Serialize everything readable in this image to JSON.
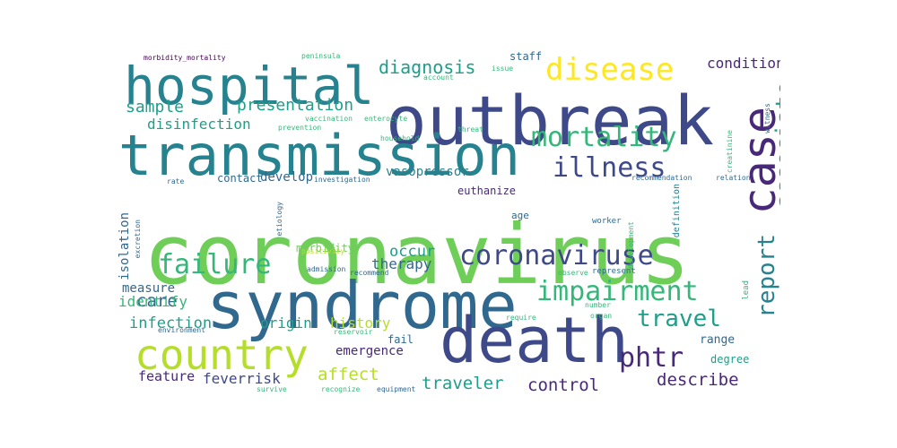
{
  "colors": {
    "yellow": "#fde725",
    "lime": "#b5de2b",
    "green": "#6ece58",
    "mint": "#35b779",
    "teal": "#1f9e89",
    "cyan": "#26828e",
    "steel": "#31688e",
    "blue": "#3e4989",
    "indigo": "#482878",
    "purple": "#440154"
  },
  "words": [
    {
      "id": "coronavirus",
      "text": "coronavirus",
      "c": "green"
    },
    {
      "id": "syndrome",
      "text": "syndrome",
      "c": "steel"
    },
    {
      "id": "outbreak",
      "text": "outbreak",
      "c": "blue"
    },
    {
      "id": "transmission",
      "text": "transmission",
      "c": "cyan"
    },
    {
      "id": "hospital",
      "text": "hospital",
      "c": "cyan"
    },
    {
      "id": "death",
      "text": "death",
      "c": "blue"
    },
    {
      "id": "case",
      "text": "case",
      "c": "indigo"
    },
    {
      "id": "country",
      "text": "country",
      "c": "lime"
    },
    {
      "id": "disease",
      "text": "disease",
      "c": "yellow"
    },
    {
      "id": "mortality",
      "text": "mortality",
      "c": "mint"
    },
    {
      "id": "associate",
      "text": "associate",
      "c": "teal"
    },
    {
      "id": "illness",
      "text": "illness",
      "c": "blue"
    },
    {
      "id": "coronaviruse",
      "text": "coronaviruse",
      "c": "blue"
    },
    {
      "id": "failure",
      "text": "failure",
      "c": "mint"
    },
    {
      "id": "impairment",
      "text": "impairment",
      "c": "mint"
    },
    {
      "id": "report",
      "text": "report",
      "c": "cyan"
    },
    {
      "id": "travel",
      "text": "travel",
      "c": "teal"
    },
    {
      "id": "phtr",
      "text": "phtr",
      "c": "indigo"
    },
    {
      "id": "diagnosis",
      "text": "diagnosis",
      "c": "teal"
    },
    {
      "id": "presentation",
      "text": "presentation",
      "c": "teal"
    },
    {
      "id": "sample",
      "text": "sample",
      "c": "teal"
    },
    {
      "id": "disinfection",
      "text": "disinfection",
      "c": "teal"
    },
    {
      "id": "condition",
      "text": "condition",
      "c": "indigo"
    },
    {
      "id": "occur",
      "text": "occur",
      "c": "teal"
    },
    {
      "id": "therapy",
      "text": "therapy",
      "c": "steel"
    },
    {
      "id": "care",
      "text": "care",
      "c": "steel"
    },
    {
      "id": "measure",
      "text": "measure",
      "c": "steel"
    },
    {
      "id": "identify",
      "text": "identify",
      "c": "mint"
    },
    {
      "id": "infection",
      "text": "infection",
      "c": "teal"
    },
    {
      "id": "origin",
      "text": "origin",
      "c": "teal"
    },
    {
      "id": "history",
      "text": "history",
      "c": "lime"
    },
    {
      "id": "emergence",
      "text": "emergence",
      "c": "indigo"
    },
    {
      "id": "feverrisk",
      "text": "feverrisk",
      "c": "blue"
    },
    {
      "id": "affect",
      "text": "affect",
      "c": "lime"
    },
    {
      "id": "feature",
      "text": "feature",
      "c": "indigo"
    },
    {
      "id": "traveler",
      "text": "traveler",
      "c": "teal"
    },
    {
      "id": "control",
      "text": "control",
      "c": "indigo"
    },
    {
      "id": "describe",
      "text": "describe",
      "c": "indigo"
    },
    {
      "id": "range",
      "text": "range",
      "c": "steel"
    },
    {
      "id": "degree",
      "text": "degree",
      "c": "teal"
    },
    {
      "id": "isolation",
      "text": "isolation",
      "c": "steel"
    },
    {
      "id": "euthanize",
      "text": "euthanize",
      "c": "indigo"
    },
    {
      "id": "vasopressor",
      "text": "vasopressor",
      "c": "cyan"
    },
    {
      "id": "develop",
      "text": "develop",
      "c": "steel"
    },
    {
      "id": "contact",
      "text": "contact",
      "c": "steel"
    },
    {
      "id": "morbidity",
      "text": "morbidity",
      "c": "green"
    },
    {
      "id": "age",
      "text": "age",
      "c": "steel"
    },
    {
      "id": "definition",
      "text": "definition",
      "c": "cyan"
    },
    {
      "id": "manifestation",
      "text": "manifestation",
      "c": "cyan"
    },
    {
      "id": "staff",
      "text": "staff",
      "c": "steel"
    },
    {
      "id": "lead",
      "text": "lead",
      "c": "mint"
    },
    {
      "id": "fail",
      "text": "fail",
      "c": "steel"
    },
    {
      "id": "worker",
      "text": "worker",
      "c": "steel"
    },
    {
      "id": "represent",
      "text": "represent",
      "c": "steel"
    },
    {
      "id": "relation",
      "text": "relation",
      "c": "steel"
    },
    {
      "id": "rate",
      "text": "rate",
      "c": "steel"
    },
    {
      "id": "investigation",
      "text": "investigation",
      "c": "steel"
    },
    {
      "id": "excretion",
      "text": "excretion",
      "c": "steel"
    },
    {
      "id": "etiology",
      "text": "etiology",
      "c": "steel"
    },
    {
      "id": "admission",
      "text": "admission",
      "c": "steel"
    },
    {
      "id": "recommend",
      "text": "recommend",
      "c": "steel"
    },
    {
      "id": "environment",
      "text": "environment",
      "c": "steel"
    },
    {
      "id": "reservoir",
      "text": "reservoir",
      "c": "mint"
    },
    {
      "id": "require",
      "text": "require",
      "c": "mint"
    },
    {
      "id": "number",
      "text": "number",
      "c": "mint"
    },
    {
      "id": "observe",
      "text": "observe",
      "c": "mint"
    },
    {
      "id": "organ",
      "text": "organ",
      "c": "mint"
    },
    {
      "id": "survive",
      "text": "survive",
      "c": "mint"
    },
    {
      "id": "recognize",
      "text": "recognize",
      "c": "mint"
    },
    {
      "id": "equipment",
      "text": "equipment",
      "c": "steel"
    },
    {
      "id": "positivity",
      "text": "positivity",
      "c": "lime"
    },
    {
      "id": "morbidity_mortality",
      "text": "morbidity_mortality",
      "c": "purple"
    },
    {
      "id": "peninsula",
      "text": "peninsula",
      "c": "mint"
    },
    {
      "id": "issue",
      "text": "issue",
      "c": "mint"
    },
    {
      "id": "account",
      "text": "account",
      "c": "mint"
    },
    {
      "id": "vaccination",
      "text": "vaccination",
      "c": "mint"
    },
    {
      "id": "enterocyte",
      "text": "enterocyte",
      "c": "mint"
    },
    {
      "id": "prevention",
      "text": "prevention",
      "c": "mint"
    },
    {
      "id": "household",
      "text": "household",
      "c": "mint"
    },
    {
      "id": "threat",
      "text": "threat",
      "c": "mint"
    },
    {
      "id": "creatinine",
      "text": "creatinine",
      "c": "mint"
    },
    {
      "id": "witness",
      "text": "witness",
      "c": "steel"
    },
    {
      "id": "recommendation",
      "text": "recommendation",
      "c": "steel"
    },
    {
      "id": "development",
      "text": "development",
      "c": "mint"
    }
  ]
}
